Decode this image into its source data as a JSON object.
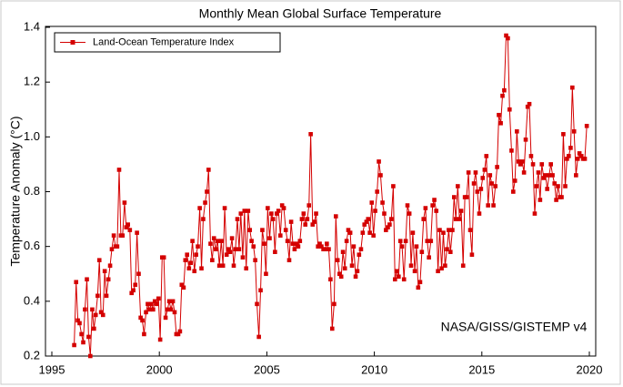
{
  "chart_data": {
    "type": "line",
    "title": "Monthly Mean Global Surface Temperature",
    "ylabel": "Temperature Anomaly (°C)",
    "annotation": "NASA/GISS/GISTEMP v4",
    "legend": "upper left",
    "grid": false,
    "xlim": [
      1995,
      2020
    ],
    "xticks": [
      1995,
      2000,
      2005,
      2010,
      2015,
      2020
    ],
    "ylim": [
      0.2,
      1.4
    ],
    "yticks": [
      0.2,
      0.4,
      0.6,
      0.8,
      {
        "value": 1,
        "label": "1.0"
      },
      1.2,
      1.4
    ],
    "x": [
      1996.04,
      1996.13,
      1996.21,
      1996.29,
      1996.38,
      1996.46,
      1996.54,
      1996.63,
      1996.71,
      1996.79,
      1996.88,
      1996.96,
      1997.04,
      1997.13,
      1997.21,
      1997.29,
      1997.38,
      1997.46,
      1997.54,
      1997.63,
      1997.71,
      1997.79,
      1997.88,
      1997.96,
      1998.04,
      1998.13,
      1998.21,
      1998.29,
      1998.38,
      1998.46,
      1998.54,
      1998.63,
      1998.71,
      1998.79,
      1998.88,
      1998.96,
      1999.04,
      1999.13,
      1999.21,
      1999.29,
      1999.38,
      1999.46,
      1999.54,
      1999.63,
      1999.71,
      1999.79,
      1999.88,
      1999.96,
      2000.04,
      2000.13,
      2000.21,
      2000.29,
      2000.38,
      2000.46,
      2000.54,
      2000.63,
      2000.71,
      2000.79,
      2000.88,
      2000.96,
      2001.04,
      2001.13,
      2001.21,
      2001.29,
      2001.38,
      2001.46,
      2001.54,
      2001.63,
      2001.71,
      2001.79,
      2001.88,
      2001.96,
      2002.04,
      2002.13,
      2002.21,
      2002.29,
      2002.38,
      2002.46,
      2002.54,
      2002.63,
      2002.71,
      2002.79,
      2002.88,
      2002.96,
      2003.04,
      2003.13,
      2003.21,
      2003.29,
      2003.38,
      2003.46,
      2003.54,
      2003.63,
      2003.71,
      2003.79,
      2003.88,
      2003.96,
      2004.04,
      2004.13,
      2004.21,
      2004.29,
      2004.38,
      2004.46,
      2004.54,
      2004.63,
      2004.71,
      2004.79,
      2004.88,
      2004.96,
      2005.04,
      2005.13,
      2005.21,
      2005.29,
      2005.38,
      2005.46,
      2005.54,
      2005.63,
      2005.71,
      2005.79,
      2005.88,
      2005.96,
      2006.04,
      2006.13,
      2006.21,
      2006.29,
      2006.38,
      2006.46,
      2006.54,
      2006.63,
      2006.71,
      2006.79,
      2006.88,
      2006.96,
      2007.04,
      2007.13,
      2007.21,
      2007.29,
      2007.38,
      2007.46,
      2007.54,
      2007.63,
      2007.71,
      2007.79,
      2007.88,
      2007.96,
      2008.04,
      2008.13,
      2008.21,
      2008.29,
      2008.38,
      2008.46,
      2008.54,
      2008.63,
      2008.71,
      2008.79,
      2008.88,
      2008.96,
      2009.04,
      2009.13,
      2009.21,
      2009.29,
      2009.38,
      2009.46,
      2009.54,
      2009.63,
      2009.71,
      2009.79,
      2009.88,
      2009.96,
      2010.04,
      2010.13,
      2010.21,
      2010.29,
      2010.38,
      2010.46,
      2010.54,
      2010.63,
      2010.71,
      2010.79,
      2010.88,
      2010.96,
      2011.04,
      2011.13,
      2011.21,
      2011.29,
      2011.38,
      2011.46,
      2011.54,
      2011.63,
      2011.71,
      2011.79,
      2011.88,
      2011.96,
      2012.04,
      2012.13,
      2012.21,
      2012.29,
      2012.38,
      2012.46,
      2012.54,
      2012.63,
      2012.71,
      2012.79,
      2012.88,
      2012.96,
      2013.04,
      2013.13,
      2013.21,
      2013.29,
      2013.38,
      2013.46,
      2013.54,
      2013.63,
      2013.71,
      2013.79,
      2013.88,
      2013.96,
      2014.04,
      2014.13,
      2014.21,
      2014.29,
      2014.38,
      2014.46,
      2014.54,
      2014.63,
      2014.71,
      2014.79,
      2014.88,
      2014.96,
      2015.04,
      2015.13,
      2015.21,
      2015.29,
      2015.38,
      2015.46,
      2015.54,
      2015.63,
      2015.71,
      2015.79,
      2015.88,
      2015.96,
      2016.04,
      2016.13,
      2016.21,
      2016.29,
      2016.38,
      2016.46,
      2016.54,
      2016.63,
      2016.71,
      2016.79,
      2016.88,
      2016.96,
      2017.04,
      2017.13,
      2017.21,
      2017.29,
      2017.38,
      2017.46,
      2017.54,
      2017.63,
      2017.71,
      2017.79,
      2017.88,
      2017.96,
      2018.04,
      2018.13,
      2018.21,
      2018.29,
      2018.38,
      2018.46,
      2018.54,
      2018.63,
      2018.71,
      2018.79,
      2018.88,
      2018.96,
      2019.04,
      2019.13,
      2019.21,
      2019.29,
      2019.38,
      2019.46,
      2019.54,
      2019.63,
      2019.71,
      2019.79,
      2019.88
    ],
    "series": [
      {
        "name": "Land-Ocean Temperature Index",
        "color": "#d40000",
        "values": [
          0.24,
          0.47,
          0.33,
          0.32,
          0.28,
          0.25,
          0.37,
          0.48,
          0.27,
          0.2,
          0.37,
          0.3,
          0.35,
          0.42,
          0.55,
          0.36,
          0.35,
          0.51,
          0.42,
          0.48,
          0.53,
          0.59,
          0.64,
          0.6,
          0.6,
          0.88,
          0.64,
          0.64,
          0.76,
          0.67,
          0.68,
          0.66,
          0.43,
          0.44,
          0.46,
          0.65,
          0.5,
          0.34,
          0.33,
          0.28,
          0.36,
          0.39,
          0.37,
          0.39,
          0.37,
          0.4,
          0.39,
          0.41,
          0.26,
          0.56,
          0.56,
          0.34,
          0.37,
          0.4,
          0.37,
          0.4,
          0.36,
          0.28,
          0.28,
          0.29,
          0.46,
          0.45,
          0.55,
          0.57,
          0.52,
          0.54,
          0.62,
          0.51,
          0.57,
          0.6,
          0.74,
          0.52,
          0.7,
          0.76,
          0.8,
          0.88,
          0.61,
          0.55,
          0.63,
          0.59,
          0.62,
          0.53,
          0.62,
          0.53,
          0.74,
          0.57,
          0.59,
          0.58,
          0.63,
          0.53,
          0.59,
          0.7,
          0.59,
          0.72,
          0.56,
          0.73,
          0.52,
          0.73,
          0.66,
          0.62,
          0.6,
          0.55,
          0.39,
          0.27,
          0.44,
          0.66,
          0.61,
          0.5,
          0.74,
          0.63,
          0.72,
          0.7,
          0.58,
          0.72,
          0.73,
          0.64,
          0.75,
          0.74,
          0.66,
          0.62,
          0.55,
          0.69,
          0.61,
          0.59,
          0.61,
          0.6,
          0.62,
          0.7,
          0.72,
          0.68,
          0.7,
          0.75,
          1.01,
          0.68,
          0.69,
          0.72,
          0.6,
          0.61,
          0.6,
          0.59,
          0.59,
          0.61,
          0.59,
          0.48,
          0.3,
          0.39,
          0.71,
          0.55,
          0.5,
          0.49,
          0.58,
          0.52,
          0.62,
          0.66,
          0.65,
          0.53,
          0.6,
          0.49,
          0.51,
          0.57,
          0.59,
          0.65,
          0.68,
          0.69,
          0.7,
          0.65,
          0.76,
          0.64,
          0.73,
          0.8,
          0.91,
          0.86,
          0.76,
          0.72,
          0.66,
          0.67,
          0.68,
          0.7,
          0.82,
          0.48,
          0.51,
          0.49,
          0.62,
          0.6,
          0.48,
          0.62,
          0.75,
          0.72,
          0.53,
          0.65,
          0.51,
          0.6,
          0.45,
          0.47,
          0.58,
          0.7,
          0.74,
          0.62,
          0.56,
          0.62,
          0.75,
          0.77,
          0.73,
          0.51,
          0.66,
          0.52,
          0.65,
          0.53,
          0.59,
          0.66,
          0.58,
          0.66,
          0.78,
          0.7,
          0.82,
          0.7,
          0.73,
          0.53,
          0.78,
          0.78,
          0.87,
          0.66,
          0.57,
          0.83,
          0.87,
          0.8,
          0.72,
          0.81,
          0.85,
          0.88,
          0.93,
          0.75,
          0.86,
          0.83,
          0.75,
          0.82,
          0.89,
          1.08,
          1.05,
          1.15,
          1.17,
          1.37,
          1.36,
          1.1,
          0.95,
          0.8,
          0.84,
          1.02,
          0.91,
          0.9,
          0.91,
          0.87,
          0.99,
          1.11,
          1.12,
          0.93,
          0.9,
          0.72,
          0.82,
          0.87,
          0.77,
          0.9,
          0.85,
          0.86,
          0.81,
          0.86,
          0.9,
          0.86,
          0.83,
          0.77,
          0.82,
          0.78,
          0.78,
          1.01,
          0.82,
          0.92,
          0.93,
          0.96,
          1.18,
          1.02,
          0.86,
          0.92,
          0.94,
          0.93,
          0.92,
          0.92,
          1.04
        ]
      }
    ]
  }
}
